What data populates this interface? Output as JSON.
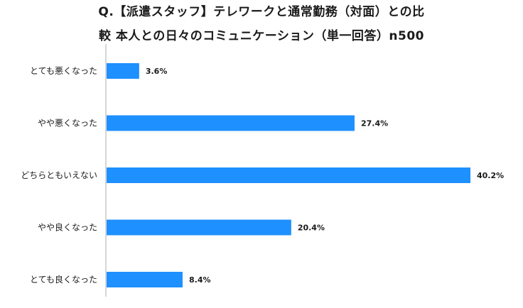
{
  "chart_data": {
    "type": "bar",
    "orientation": "horizontal",
    "title_line1": "Q.【派遣スタッフ】テレワークと通常勤務（対面）との比",
    "title_line2": "較 本人との日々のコミュニケーション（単一回答）n500",
    "categories": [
      "とても悪くなった",
      "やや悪くなった",
      "どちらともいえない",
      "やや良くなった",
      "とても良くなった"
    ],
    "values": [
      3.6,
      27.4,
      40.2,
      20.4,
      8.4
    ],
    "value_labels": [
      "3.6%",
      "27.4%",
      "40.2%",
      "20.4%",
      "8.4%"
    ],
    "xlim": [
      0,
      40.2
    ],
    "bar_color": "#1e90ff",
    "axis_color": "#c8c8c8",
    "grid": false,
    "legend": "none"
  }
}
